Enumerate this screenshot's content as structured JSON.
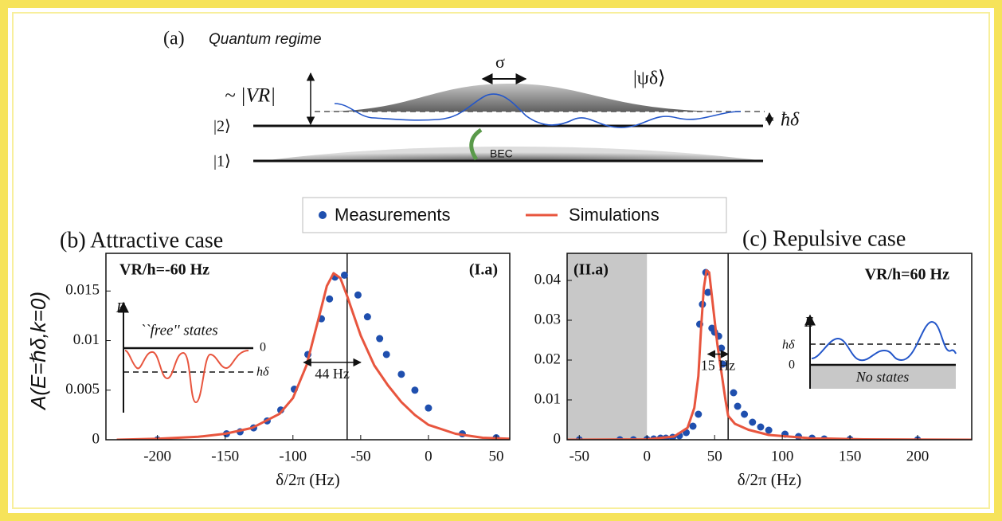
{
  "diagram": {
    "panel": "(a)",
    "title": "Quantum regime",
    "sigma": "σ",
    "state": "|ψδ⟩",
    "potential": "~ |VR|",
    "level2": "|2⟩",
    "level1": "|1⟩",
    "detuning": "ħδ",
    "bec": "BEC"
  },
  "chart_data": [
    {
      "type": "line",
      "title": "(b) Attractive case",
      "xlabel": "δ/2π (Hz)",
      "ylabel": "A(E=ℏδ,k=0)",
      "xlim": [
        -238,
        60
      ],
      "ylim": [
        0,
        0.0188
      ],
      "xticks": [
        -200,
        -150,
        -100,
        -50,
        0,
        50
      ],
      "yticks": [
        0,
        0.005,
        0.01,
        0.015
      ],
      "labels": [
        "VR/h=-60 Hz",
        "(I.a)"
      ],
      "inset_labels": [
        "E",
        "``free'' states",
        "0",
        "hδ"
      ],
      "vline": -60,
      "arrow": {
        "label": "44 Hz",
        "x": [
          -92,
          -50
        ],
        "y": 0.0078
      },
      "series": [
        {
          "name": "Measurements",
          "style": "markers",
          "color": "#1f4fae",
          "x": [
            -200,
            -149,
            -139,
            -129,
            -119,
            -109,
            -99,
            -89,
            -79,
            -73,
            -69,
            -62,
            -52,
            -45,
            -36,
            -31,
            -20,
            -10,
            0,
            25,
            50
          ],
          "values": [
            0,
            0.0006,
            0.0008,
            0.0012,
            0.0019,
            0.003,
            0.0051,
            0.0086,
            0.0122,
            0.0142,
            0.0164,
            0.0166,
            0.0146,
            0.0124,
            0.0102,
            0.0086,
            0.0066,
            0.005,
            0.0032,
            0.0006,
            0.0002
          ]
        },
        {
          "name": "Simulations",
          "style": "line",
          "color": "#e8553e",
          "x": [
            -230,
            -200,
            -170,
            -150,
            -130,
            -110,
            -100,
            -90,
            -80,
            -75,
            -70,
            -65,
            -60,
            -55,
            -50,
            -40,
            -30,
            -20,
            -10,
            0,
            20,
            40,
            60
          ],
          "values": [
            0,
            0.0001,
            0.0003,
            0.0006,
            0.0012,
            0.0026,
            0.0042,
            0.0075,
            0.0128,
            0.0155,
            0.0168,
            0.0163,
            0.0145,
            0.0125,
            0.0105,
            0.0075,
            0.0055,
            0.0038,
            0.0025,
            0.0015,
            0.0006,
            0.0002,
            0.0001
          ]
        }
      ]
    },
    {
      "type": "line",
      "title": "(c) Repulsive case",
      "xlabel": "δ/2π (Hz)",
      "xlim": [
        -59,
        240
      ],
      "ylim": [
        0,
        0.0468
      ],
      "xticks": [
        -50,
        0,
        50,
        100,
        150,
        200
      ],
      "yticks": [
        0,
        0.01,
        0.02,
        0.03,
        0.04
      ],
      "labels": [
        "VR/h=60 Hz",
        "(II.a)"
      ],
      "inset_labels": [
        "E",
        "hδ",
        "0",
        "No states"
      ],
      "shade": [
        -59,
        0
      ],
      "vline": 60,
      "arrow": {
        "label": "15 Hz",
        "x": [
          45,
          60
        ],
        "y": 0.0215
      },
      "series": [
        {
          "name": "Measurements",
          "style": "markers",
          "color": "#1f4fae",
          "x": [
            -50,
            -20,
            -10,
            0,
            5,
            10,
            14,
            19,
            24,
            29,
            34,
            38,
            39,
            41,
            43.5,
            45,
            48,
            50,
            53,
            55,
            56,
            64,
            67,
            72,
            78,
            84,
            90,
            102,
            112,
            122,
            131,
            150,
            200
          ],
          "values": [
            0,
            0,
            0,
            0.0001,
            0.0002,
            0.0004,
            0.0004,
            0.0006,
            0.001,
            0.0018,
            0.0034,
            0.0064,
            0.029,
            0.034,
            0.042,
            0.037,
            0.028,
            0.027,
            0.026,
            0.023,
            0.019,
            0.0118,
            0.0084,
            0.0064,
            0.0044,
            0.0032,
            0.0024,
            0.0014,
            0.0008,
            0.0004,
            0.0002,
            0.0001,
            0
          ]
        },
        {
          "name": "Simulations",
          "style": "line",
          "color": "#e8553e",
          "x": [
            -59,
            0,
            20,
            30,
            35,
            38,
            40,
            42,
            44,
            46,
            48,
            50,
            52,
            55,
            58,
            60,
            65,
            75,
            90,
            120,
            160,
            240
          ],
          "values": [
            0,
            0.0001,
            0.0008,
            0.003,
            0.008,
            0.016,
            0.028,
            0.038,
            0.0425,
            0.042,
            0.036,
            0.03,
            0.024,
            0.017,
            0.01,
            0.006,
            0.004,
            0.0025,
            0.0012,
            0.0004,
            0.0001,
            0
          ]
        }
      ]
    }
  ]
}
